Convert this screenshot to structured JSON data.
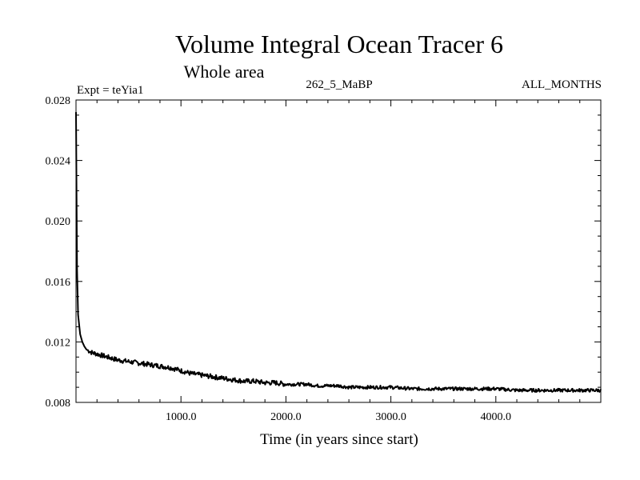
{
  "chart_data": {
    "type": "line",
    "title": "Volume Integral Ocean Tracer 6",
    "subtitle": "Whole area",
    "header_left": "Expt = teYia1",
    "header_center": "262_5_MaBP",
    "header_right": "ALL_MONTHS",
    "xlabel": "Time (in years since start)",
    "ylabel": "",
    "xlim": [
      0,
      5000
    ],
    "ylim": [
      0.008,
      0.028
    ],
    "x_tick_labels": [
      "1000.0",
      "2000.0",
      "3000.0",
      "4000.0"
    ],
    "x_tick_values": [
      1000,
      2000,
      3000,
      4000
    ],
    "y_tick_labels": [
      "0.008",
      "0.012",
      "0.016",
      "0.020",
      "0.024",
      "0.028"
    ],
    "y_tick_values": [
      0.008,
      0.012,
      0.016,
      0.02,
      0.024,
      0.028
    ],
    "grid": false,
    "line_color": "#000000",
    "series": [
      {
        "x": [
          0,
          5,
          10,
          20,
          40,
          60,
          80,
          100,
          150,
          200,
          300,
          400,
          500,
          600,
          700,
          800,
          900,
          1000,
          1100,
          1200,
          1300,
          1400,
          1500,
          1600,
          1700,
          1800,
          1900,
          2000,
          2100,
          2200,
          2300,
          2400,
          2500,
          2600,
          2700,
          2800,
          2900,
          3000,
          3200,
          3400,
          3600,
          3800,
          4000,
          4200,
          4400,
          4600,
          4800,
          5000
        ],
        "values": [
          0.0272,
          0.0215,
          0.0168,
          0.0138,
          0.0125,
          0.012,
          0.0117,
          0.0115,
          0.0113,
          0.0112,
          0.011,
          0.0108,
          0.0107,
          0.0106,
          0.0105,
          0.0104,
          0.0103,
          0.0101,
          0.0099,
          0.0098,
          0.0097,
          0.0096,
          0.0095,
          0.0094,
          0.0094,
          0.0093,
          0.0093,
          0.0092,
          0.0092,
          0.0092,
          0.0091,
          0.0091,
          0.0091,
          0.009,
          0.009,
          0.009,
          0.009,
          0.009,
          0.0089,
          0.0089,
          0.0089,
          0.0089,
          0.0089,
          0.0088,
          0.0088,
          0.0088,
          0.0088,
          0.0088
        ]
      }
    ]
  }
}
